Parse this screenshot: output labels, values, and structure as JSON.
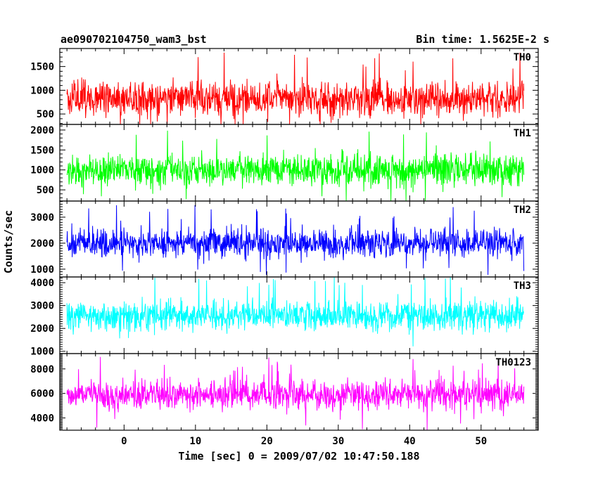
{
  "header": {
    "title": "ae090702104750_wam3_bst",
    "bin_time": "Bin time: 1.5625E-2 s"
  },
  "chart_data": {
    "type": "line",
    "title": "ae090702104750_wam3_bst",
    "subtitle": "Bin time: 1.5625E-2 s",
    "xlabel": "Time [sec] 0 = 2009/07/02 10:47:50.188",
    "ylabel": "Counts/sec",
    "xlim": [
      -9,
      58
    ],
    "x_ticks": [
      0,
      10,
      20,
      30,
      40,
      50
    ],
    "x_range_data": [
      -8,
      56
    ],
    "bin_time_s": 0.015625,
    "grid": false,
    "panels": [
      {
        "name": "TH0",
        "color": "#ff0000",
        "ylim": [
          280,
          1880
        ],
        "y_ticks": [
          500,
          1000,
          1500
        ],
        "mean": 820,
        "spread": 270,
        "min_value": 280,
        "max_value": 1880
      },
      {
        "name": "TH1",
        "color": "#00ff00",
        "ylim": [
          220,
          2140
        ],
        "y_ticks": [
          500,
          1000,
          1500,
          2000
        ],
        "mean": 1000,
        "spread": 300,
        "min_value": 230,
        "max_value": 2140
      },
      {
        "name": "TH2",
        "color": "#0000ff",
        "ylim": [
          700,
          3620
        ],
        "y_ticks": [
          1000,
          2000,
          3000
        ],
        "mean": 2000,
        "spread": 420,
        "min_value": 780,
        "max_value": 3600
      },
      {
        "name": "TH3",
        "color": "#00ffff",
        "ylim": [
          900,
          4250
        ],
        "y_ticks": [
          1000,
          2000,
          3000,
          4000
        ],
        "mean": 2550,
        "spread": 480,
        "min_value": 1000,
        "max_value": 4250
      },
      {
        "name": "TH0123",
        "color": "#ff00ff",
        "ylim": [
          3000,
          9250
        ],
        "y_ticks": [
          4000,
          6000,
          8000
        ],
        "mean": 5900,
        "spread": 860,
        "min_value": 3000,
        "max_value": 9200
      }
    ]
  }
}
